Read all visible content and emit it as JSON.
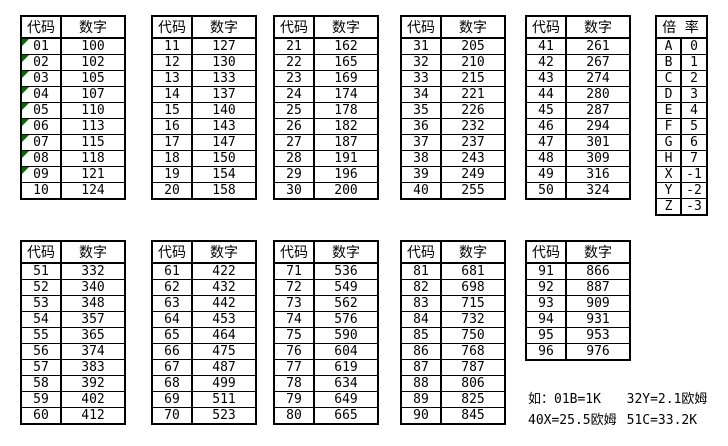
{
  "columns": {
    "code": "代码",
    "value": "数字"
  },
  "tables": [
    {
      "name": "codes-01-10",
      "rows": [
        [
          "01",
          "100"
        ],
        [
          "02",
          "102"
        ],
        [
          "03",
          "105"
        ],
        [
          "04",
          "107"
        ],
        [
          "05",
          "110"
        ],
        [
          "06",
          "113"
        ],
        [
          "07",
          "115"
        ],
        [
          "08",
          "118"
        ],
        [
          "09",
          "121"
        ],
        [
          "10",
          "124"
        ]
      ],
      "flagged": [
        0,
        1,
        2,
        3,
        4,
        5,
        6,
        7,
        8
      ]
    },
    {
      "name": "codes-11-20",
      "rows": [
        [
          "11",
          "127"
        ],
        [
          "12",
          "130"
        ],
        [
          "13",
          "133"
        ],
        [
          "14",
          "137"
        ],
        [
          "15",
          "140"
        ],
        [
          "16",
          "143"
        ],
        [
          "17",
          "147"
        ],
        [
          "18",
          "150"
        ],
        [
          "19",
          "154"
        ],
        [
          "20",
          "158"
        ]
      ],
      "flagged": []
    },
    {
      "name": "codes-21-30",
      "rows": [
        [
          "21",
          "162"
        ],
        [
          "22",
          "165"
        ],
        [
          "23",
          "169"
        ],
        [
          "24",
          "174"
        ],
        [
          "25",
          "178"
        ],
        [
          "26",
          "182"
        ],
        [
          "27",
          "187"
        ],
        [
          "28",
          "191"
        ],
        [
          "29",
          "196"
        ],
        [
          "30",
          "200"
        ]
      ],
      "flagged": []
    },
    {
      "name": "codes-31-40",
      "rows": [
        [
          "31",
          "205"
        ],
        [
          "32",
          "210"
        ],
        [
          "33",
          "215"
        ],
        [
          "34",
          "221"
        ],
        [
          "35",
          "226"
        ],
        [
          "36",
          "232"
        ],
        [
          "37",
          "237"
        ],
        [
          "38",
          "243"
        ],
        [
          "39",
          "249"
        ],
        [
          "40",
          "255"
        ]
      ],
      "flagged": []
    },
    {
      "name": "codes-41-50",
      "rows": [
        [
          "41",
          "261"
        ],
        [
          "42",
          "267"
        ],
        [
          "43",
          "274"
        ],
        [
          "44",
          "280"
        ],
        [
          "45",
          "287"
        ],
        [
          "46",
          "294"
        ],
        [
          "47",
          "301"
        ],
        [
          "48",
          "309"
        ],
        [
          "49",
          "316"
        ],
        [
          "50",
          "324"
        ]
      ],
      "flagged": []
    },
    {
      "name": "codes-51-60",
      "rows": [
        [
          "51",
          "332"
        ],
        [
          "52",
          "340"
        ],
        [
          "53",
          "348"
        ],
        [
          "54",
          "357"
        ],
        [
          "55",
          "365"
        ],
        [
          "56",
          "374"
        ],
        [
          "57",
          "383"
        ],
        [
          "58",
          "392"
        ],
        [
          "59",
          "402"
        ],
        [
          "60",
          "412"
        ]
      ],
      "flagged": []
    },
    {
      "name": "codes-61-70",
      "rows": [
        [
          "61",
          "422"
        ],
        [
          "62",
          "432"
        ],
        [
          "63",
          "442"
        ],
        [
          "64",
          "453"
        ],
        [
          "65",
          "464"
        ],
        [
          "66",
          "475"
        ],
        [
          "67",
          "487"
        ],
        [
          "68",
          "499"
        ],
        [
          "69",
          "511"
        ],
        [
          "70",
          "523"
        ]
      ],
      "flagged": []
    },
    {
      "name": "codes-71-80",
      "rows": [
        [
          "71",
          "536"
        ],
        [
          "72",
          "549"
        ],
        [
          "73",
          "562"
        ],
        [
          "74",
          "576"
        ],
        [
          "75",
          "590"
        ],
        [
          "76",
          "604"
        ],
        [
          "77",
          "619"
        ],
        [
          "78",
          "634"
        ],
        [
          "79",
          "649"
        ],
        [
          "80",
          "665"
        ]
      ],
      "flagged": []
    },
    {
      "name": "codes-81-90",
      "rows": [
        [
          "81",
          "681"
        ],
        [
          "82",
          "698"
        ],
        [
          "83",
          "715"
        ],
        [
          "84",
          "732"
        ],
        [
          "85",
          "750"
        ],
        [
          "86",
          "768"
        ],
        [
          "87",
          "787"
        ],
        [
          "88",
          "806"
        ],
        [
          "89",
          "825"
        ],
        [
          "90",
          "845"
        ]
      ],
      "flagged": []
    },
    {
      "name": "codes-91-96",
      "rows": [
        [
          "91",
          "866"
        ],
        [
          "92",
          "887"
        ],
        [
          "93",
          "909"
        ],
        [
          "94",
          "931"
        ],
        [
          "95",
          "953"
        ],
        [
          "96",
          "976"
        ]
      ],
      "flagged": []
    }
  ],
  "multiplier": {
    "title": "倍 率",
    "rows": [
      [
        "A",
        "0"
      ],
      [
        "B",
        "1"
      ],
      [
        "C",
        "2"
      ],
      [
        "D",
        "3"
      ],
      [
        "E",
        "4"
      ],
      [
        "F",
        "5"
      ],
      [
        "G",
        "6"
      ],
      [
        "H",
        "7"
      ],
      [
        "X",
        "-1"
      ],
      [
        "Y",
        "-2"
      ],
      [
        "Z",
        "-3"
      ]
    ]
  },
  "examples": {
    "line1_left": "如：01B=1K",
    "line1_right": "32Y=2.1欧姆",
    "line2_left": "40X=25.5欧姆",
    "line2_right": "51C=33.2K"
  },
  "colors": {
    "border": "#000000",
    "background": "#ffffff",
    "text": "#000000",
    "flag_green": "#017001"
  }
}
